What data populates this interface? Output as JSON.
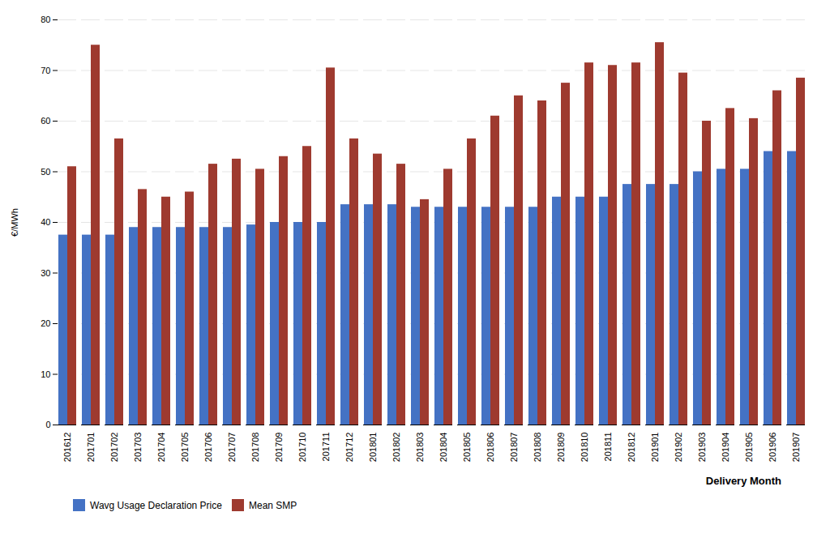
{
  "chart_data": {
    "type": "bar",
    "categories": [
      "201612",
      "201701",
      "201702",
      "201703",
      "201704",
      "201705",
      "201706",
      "201707",
      "201708",
      "201709",
      "201710",
      "201711",
      "201712",
      "201801",
      "201802",
      "201803",
      "201804",
      "201805",
      "201806",
      "201807",
      "201808",
      "201809",
      "201810",
      "201811",
      "201812",
      "201901",
      "201902",
      "201903",
      "201904",
      "201905",
      "201906",
      "201907"
    ],
    "series": [
      {
        "name": "Wavg Usage Declaration Price",
        "color": "#4472C4",
        "values": [
          37.5,
          37.5,
          37.5,
          39.0,
          39.0,
          39.0,
          39.0,
          39.0,
          39.5,
          40.0,
          40.0,
          40.0,
          43.5,
          43.5,
          43.5,
          43.0,
          43.0,
          43.0,
          43.0,
          43.0,
          43.0,
          45.0,
          45.0,
          45.0,
          47.5,
          47.5,
          47.5,
          50.0,
          50.5,
          50.5,
          54.0,
          54.0
        ]
      },
      {
        "name": "Mean SMP",
        "color": "#9E3A2F",
        "values": [
          51.0,
          75.0,
          56.5,
          46.5,
          45.0,
          46.0,
          51.5,
          52.5,
          50.5,
          53.0,
          55.0,
          70.5,
          56.5,
          53.5,
          51.5,
          44.5,
          50.5,
          56.5,
          61.0,
          65.0,
          64.0,
          67.5,
          71.5,
          71.0,
          71.5,
          75.5,
          69.5,
          60.0,
          62.5,
          60.5,
          66.0,
          68.5
        ]
      }
    ],
    "xlabel": "Delivery Month",
    "ylabel": "€/MWh",
    "ylim": [
      0,
      80
    ],
    "yticks": [
      0,
      10,
      20,
      30,
      40,
      50,
      60,
      70,
      80
    ],
    "grid": true,
    "legend": "bottom"
  }
}
